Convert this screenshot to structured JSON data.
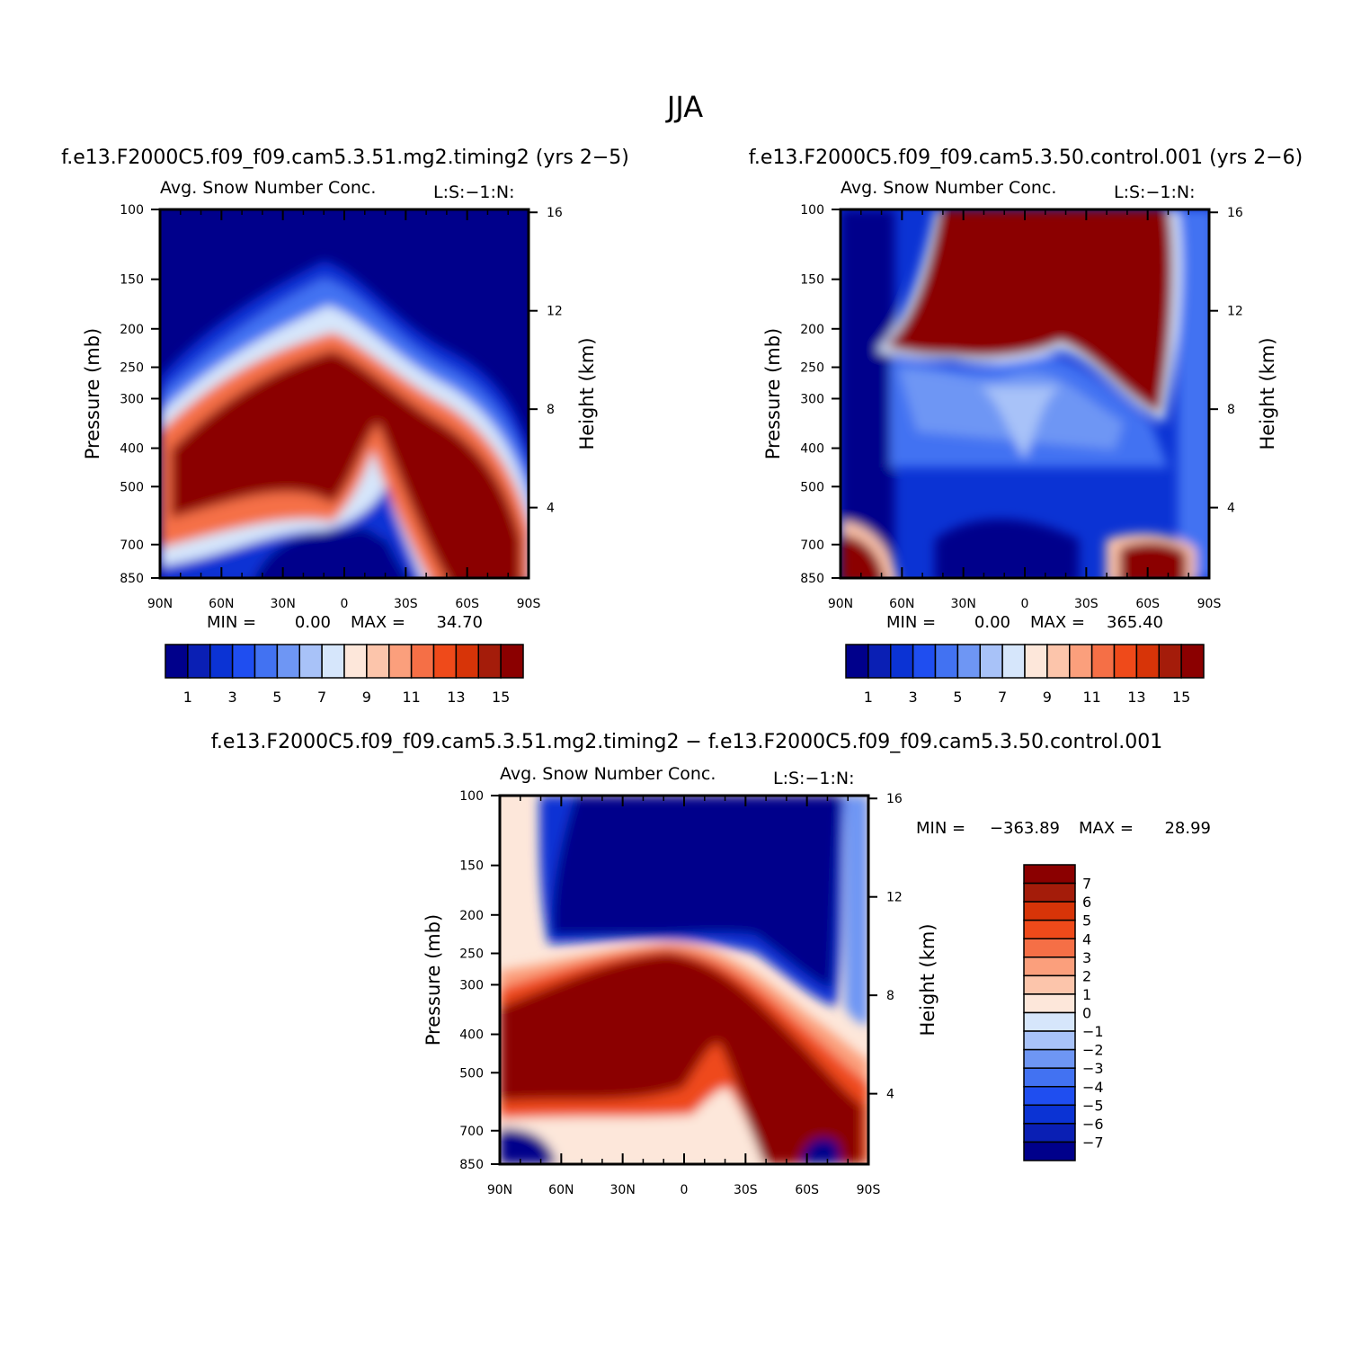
{
  "main_title": "JJA",
  "panel_titles": {
    "test": "f.e13.F2000C5.f09_f09.cam5.3.51.mg2.timing2 (yrs 2−5)",
    "control": "f.e13.F2000C5.f09_f09.cam5.3.50.control.001 (yrs 2−6)",
    "diff": "f.e13.F2000C5.f09_f09.cam5.3.51.mg2.timing2 − f.e13.F2000C5.f09_f09.cam5.3.50.control.001"
  },
  "colors": {
    "main_scale": [
      "#00008b",
      "#0a1fb4",
      "#0b33d4",
      "#1f4ef0",
      "#4272f2",
      "#6e96f4",
      "#a8c2f8",
      "#d6e6fb",
      "#fde7da",
      "#fcc5ab",
      "#fb9f7c",
      "#f56f46",
      "#ef4a1a",
      "#d73408",
      "#a41c0a",
      "#8b0000"
    ],
    "diff_scale": [
      "#00008b",
      "#0a1fb4",
      "#0b33d4",
      "#1f4ef0",
      "#4272f2",
      "#6e96f4",
      "#a8c2f8",
      "#d6e6fb",
      "#fde7da",
      "#fcc5ab",
      "#fb9f7c",
      "#f56f46",
      "#ef4a1a",
      "#d73408",
      "#a41c0a",
      "#8b0000"
    ]
  },
  "chart_data": [
    {
      "type": "heatmap",
      "id": "test",
      "title": "Avg. Snow Number Conc.",
      "corner_label": "L:S:−1:N:",
      "xlabel": "",
      "ylabel": "Pressure (mb)",
      "y2label": "Height (km)",
      "x_tick_labels": [
        "90N",
        "60N",
        "30N",
        "0",
        "30S",
        "60S",
        "90S"
      ],
      "y_tick_labels": [
        "100",
        "150",
        "200",
        "250",
        "300",
        "400",
        "500",
        "700",
        "850"
      ],
      "y2_tick_labels": [
        "16",
        "12",
        "8",
        "4"
      ],
      "min_label": "MIN =",
      "min_value": "0.00",
      "max_label": "MAX =",
      "max_value": "34.70",
      "colorbar_labels": [
        "1",
        "3",
        "5",
        "7",
        "9",
        "11",
        "13",
        "15"
      ],
      "colorbar_orientation": "horizontal"
    },
    {
      "type": "heatmap",
      "id": "control",
      "title": "Avg. Snow Number Conc.",
      "corner_label": "L:S:−1:N:",
      "xlabel": "",
      "ylabel": "Pressure (mb)",
      "y2label": "Height (km)",
      "x_tick_labels": [
        "90N",
        "60N",
        "30N",
        "0",
        "30S",
        "60S",
        "90S"
      ],
      "y_tick_labels": [
        "100",
        "150",
        "200",
        "250",
        "300",
        "400",
        "500",
        "700",
        "850"
      ],
      "y2_tick_labels": [
        "16",
        "12",
        "8",
        "4"
      ],
      "min_label": "MIN =",
      "min_value": "0.00",
      "max_label": "MAX =",
      "max_value": "365.40",
      "colorbar_labels": [
        "1",
        "3",
        "5",
        "7",
        "9",
        "11",
        "13",
        "15"
      ],
      "colorbar_orientation": "horizontal"
    },
    {
      "type": "heatmap",
      "id": "diff",
      "title": "Avg. Snow Number Conc.",
      "corner_label": "L:S:−1:N:",
      "xlabel": "",
      "ylabel": "Pressure (mb)",
      "y2label": "Height (km)",
      "x_tick_labels": [
        "90N",
        "60N",
        "30N",
        "0",
        "30S",
        "60S",
        "90S"
      ],
      "y_tick_labels": [
        "100",
        "150",
        "200",
        "250",
        "300",
        "400",
        "500",
        "700",
        "850"
      ],
      "y2_tick_labels": [
        "16",
        "12",
        "8",
        "4"
      ],
      "min_label": "MIN =",
      "min_value": "−363.89",
      "max_label": "MAX =",
      "max_value": "28.99",
      "colorbar_labels": [
        "7",
        "6",
        "5",
        "4",
        "3",
        "2",
        "1",
        "0",
        "−1",
        "−2",
        "−3",
        "−4",
        "−5",
        "−6",
        "−7"
      ],
      "colorbar_orientation": "vertical"
    }
  ]
}
